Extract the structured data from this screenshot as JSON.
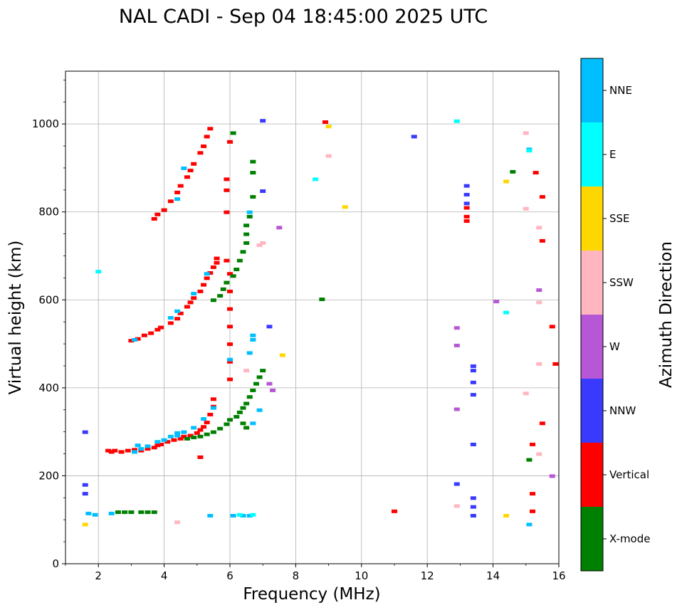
{
  "chart_data": {
    "type": "scatter",
    "title": "NAL CADI - Sep 04 18:45:00 2025 UTC",
    "xlabel": "Frequency (MHz)",
    "ylabel": "Virtual height (km)",
    "xlim": [
      1,
      16
    ],
    "ylim": [
      0,
      1120
    ],
    "xticks": [
      2,
      4,
      6,
      8,
      10,
      12,
      14,
      16
    ],
    "yticks": [
      0,
      200,
      400,
      600,
      800,
      1000
    ],
    "grid": true,
    "colorbar": {
      "label": "Azimuth Direction",
      "categories": [
        {
          "name": "NNE",
          "color": "#00bfff"
        },
        {
          "name": "E",
          "color": "#00ffff"
        },
        {
          "name": "SSE",
          "color": "#ffd700"
        },
        {
          "name": "SSW",
          "color": "#ffb6c1"
        },
        {
          "name": "W",
          "color": "#b657d6"
        },
        {
          "name": "NNW",
          "color": "#3a3aff"
        },
        {
          "name": "Vertical",
          "color": "#ff0000"
        },
        {
          "name": "X-mode",
          "color": "#008000"
        }
      ]
    },
    "series": [
      {
        "name": "Vertical",
        "points": [
          [
            2.3,
            258
          ],
          [
            2.4,
            255
          ],
          [
            2.5,
            258
          ],
          [
            2.7,
            255
          ],
          [
            2.9,
            258
          ],
          [
            3.1,
            260
          ],
          [
            3.3,
            258
          ],
          [
            3.5,
            262
          ],
          [
            3.7,
            265
          ],
          [
            3.8,
            270
          ],
          [
            3.9,
            272
          ],
          [
            4.1,
            278
          ],
          [
            4.3,
            282
          ],
          [
            4.5,
            285
          ],
          [
            4.6,
            290
          ],
          [
            4.8,
            292
          ],
          [
            5.0,
            298
          ],
          [
            5.1,
            305
          ],
          [
            5.2,
            312
          ],
          [
            5.3,
            322
          ],
          [
            5.4,
            340
          ],
          [
            5.5,
            358
          ],
          [
            5.5,
            375
          ],
          [
            5.1,
            243
          ],
          [
            3.0,
            508
          ],
          [
            3.2,
            512
          ],
          [
            3.4,
            520
          ],
          [
            3.6,
            525
          ],
          [
            3.8,
            533
          ],
          [
            3.9,
            538
          ],
          [
            4.2,
            548
          ],
          [
            4.4,
            558
          ],
          [
            4.5,
            570
          ],
          [
            4.7,
            585
          ],
          [
            4.8,
            595
          ],
          [
            4.9,
            605
          ],
          [
            5.1,
            620
          ],
          [
            5.2,
            635
          ],
          [
            5.3,
            650
          ],
          [
            5.4,
            662
          ],
          [
            5.5,
            675
          ],
          [
            5.6,
            685
          ],
          [
            5.6,
            695
          ],
          [
            3.7,
            785
          ],
          [
            3.8,
            795
          ],
          [
            4.0,
            805
          ],
          [
            4.2,
            825
          ],
          [
            4.4,
            845
          ],
          [
            4.5,
            860
          ],
          [
            4.7,
            880
          ],
          [
            4.8,
            895
          ],
          [
            4.9,
            910
          ],
          [
            5.1,
            935
          ],
          [
            5.2,
            950
          ],
          [
            5.3,
            972
          ],
          [
            5.4,
            990
          ],
          [
            5.9,
            875
          ],
          [
            5.9,
            850
          ],
          [
            6.0,
            960
          ],
          [
            5.9,
            800
          ],
          [
            5.9,
            690
          ],
          [
            6.0,
            660
          ],
          [
            6.0,
            620
          ],
          [
            6.0,
            580
          ],
          [
            6.0,
            540
          ],
          [
            6.0,
            500
          ],
          [
            6.0,
            460
          ],
          [
            6.0,
            420
          ],
          [
            8.9,
            1005
          ],
          [
            11.0,
            120
          ],
          [
            13.2,
            780
          ],
          [
            13.2,
            790
          ],
          [
            13.2,
            810
          ],
          [
            15.3,
            890
          ],
          [
            15.5,
            835
          ],
          [
            15.5,
            735
          ],
          [
            15.8,
            540
          ],
          [
            15.9,
            455
          ],
          [
            15.5,
            320
          ],
          [
            15.2,
            272
          ],
          [
            15.2,
            160
          ],
          [
            15.2,
            120
          ]
        ]
      },
      {
        "name": "X-mode",
        "points": [
          [
            2.6,
            118
          ],
          [
            2.8,
            118
          ],
          [
            3.0,
            118
          ],
          [
            3.3,
            118
          ],
          [
            3.5,
            118
          ],
          [
            3.7,
            118
          ],
          [
            4.7,
            285
          ],
          [
            4.9,
            288
          ],
          [
            5.1,
            290
          ],
          [
            5.3,
            295
          ],
          [
            5.5,
            300
          ],
          [
            5.7,
            308
          ],
          [
            5.9,
            318
          ],
          [
            6.0,
            328
          ],
          [
            6.2,
            335
          ],
          [
            6.3,
            345
          ],
          [
            6.4,
            355
          ],
          [
            6.5,
            365
          ],
          [
            6.6,
            380
          ],
          [
            6.7,
            395
          ],
          [
            6.8,
            410
          ],
          [
            6.9,
            425
          ],
          [
            7.0,
            440
          ],
          [
            6.5,
            310
          ],
          [
            6.4,
            320
          ],
          [
            5.5,
            600
          ],
          [
            5.7,
            610
          ],
          [
            5.8,
            625
          ],
          [
            5.9,
            640
          ],
          [
            6.1,
            655
          ],
          [
            6.2,
            670
          ],
          [
            6.3,
            690
          ],
          [
            6.4,
            710
          ],
          [
            6.5,
            730
          ],
          [
            6.5,
            750
          ],
          [
            6.5,
            770
          ],
          [
            6.6,
            790
          ],
          [
            6.7,
            835
          ],
          [
            6.7,
            890
          ],
          [
            6.7,
            915
          ],
          [
            6.1,
            980
          ],
          [
            8.8,
            602
          ],
          [
            14.6,
            892
          ],
          [
            15.1,
            237
          ]
        ]
      },
      {
        "name": "NNE",
        "points": [
          [
            1.7,
            115
          ],
          [
            1.9,
            112
          ],
          [
            2.4,
            115
          ],
          [
            3.1,
            255
          ],
          [
            3.3,
            262
          ],
          [
            3.5,
            268
          ],
          [
            3.8,
            278
          ],
          [
            4.0,
            282
          ],
          [
            4.2,
            290
          ],
          [
            4.4,
            298
          ],
          [
            4.6,
            300
          ],
          [
            4.9,
            310
          ],
          [
            5.2,
            330
          ],
          [
            5.5,
            355
          ],
          [
            4.4,
            292
          ],
          [
            3.2,
            270
          ],
          [
            5.4,
            110
          ],
          [
            6.1,
            110
          ],
          [
            6.4,
            110
          ],
          [
            6.6,
            110
          ],
          [
            6.7,
            320
          ],
          [
            6.9,
            350
          ],
          [
            6.0,
            465
          ],
          [
            6.6,
            480
          ],
          [
            6.7,
            510
          ],
          [
            6.7,
            520
          ],
          [
            3.1,
            510
          ],
          [
            4.2,
            560
          ],
          [
            4.4,
            575
          ],
          [
            4.9,
            615
          ],
          [
            5.3,
            660
          ],
          [
            4.6,
            900
          ],
          [
            4.4,
            830
          ],
          [
            6.6,
            800
          ],
          [
            15.1,
            90
          ],
          [
            15.1,
            943
          ]
        ]
      },
      {
        "name": "E",
        "points": [
          [
            6.3,
            112
          ],
          [
            6.7,
            112
          ],
          [
            8.6,
            875
          ],
          [
            12.9,
            1007
          ],
          [
            14.4,
            572
          ],
          [
            15.1,
            940
          ],
          [
            2.0,
            665
          ]
        ]
      },
      {
        "name": "SSE",
        "points": [
          [
            1.6,
            90
          ],
          [
            9.0,
            995
          ],
          [
            9.5,
            812
          ],
          [
            14.4,
            870
          ],
          [
            14.4,
            110
          ],
          [
            7.6,
            475
          ]
        ]
      },
      {
        "name": "SSW",
        "points": [
          [
            4.4,
            95
          ],
          [
            6.9,
            725
          ],
          [
            7.0,
            730
          ],
          [
            9.0,
            928
          ],
          [
            12.9,
            132
          ],
          [
            15.0,
            980
          ],
          [
            15.0,
            808
          ],
          [
            15.4,
            765
          ],
          [
            15.4,
            595
          ],
          [
            15.4,
            455
          ],
          [
            15.0,
            388
          ],
          [
            15.4,
            250
          ],
          [
            6.5,
            440
          ]
        ]
      },
      {
        "name": "W",
        "points": [
          [
            7.5,
            765
          ],
          [
            12.9,
            537
          ],
          [
            12.9,
            497
          ],
          [
            12.9,
            352
          ],
          [
            14.1,
            597
          ],
          [
            15.4,
            623
          ],
          [
            15.8,
            200
          ],
          [
            7.3,
            395
          ],
          [
            7.2,
            410
          ]
        ]
      },
      {
        "name": "NNW",
        "points": [
          [
            7.0,
            848
          ],
          [
            7.0,
            1008
          ],
          [
            11.6,
            972
          ],
          [
            13.2,
            860
          ],
          [
            13.2,
            840
          ],
          [
            13.2,
            820
          ],
          [
            13.4,
            450
          ],
          [
            13.4,
            440
          ],
          [
            13.4,
            413
          ],
          [
            13.4,
            385
          ],
          [
            13.4,
            272
          ],
          [
            12.9,
            182
          ],
          [
            13.4,
            150
          ],
          [
            13.4,
            130
          ],
          [
            13.4,
            110
          ],
          [
            1.6,
            180
          ],
          [
            1.6,
            160
          ],
          [
            1.6,
            300
          ],
          [
            7.2,
            540
          ]
        ]
      }
    ]
  }
}
